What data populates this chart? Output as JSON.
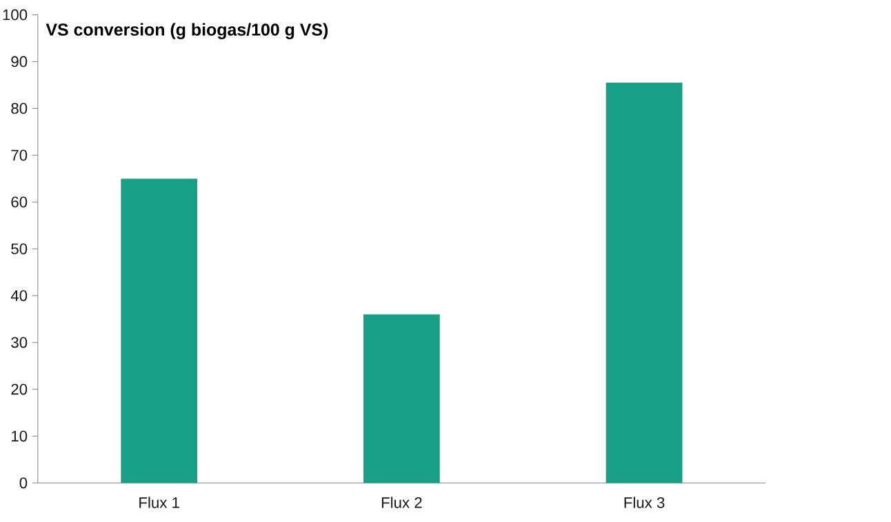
{
  "chart_data": {
    "type": "bar",
    "title": "VS conversion (g biogas/100 g VS)",
    "categories": [
      "Flux 1",
      "Flux 2",
      "Flux 3"
    ],
    "values": [
      65,
      36,
      85.5
    ],
    "color": "#17a085",
    "ylim": [
      0,
      100
    ],
    "yticks": [
      0,
      10,
      20,
      30,
      40,
      50,
      60,
      70,
      80,
      90,
      100
    ]
  }
}
